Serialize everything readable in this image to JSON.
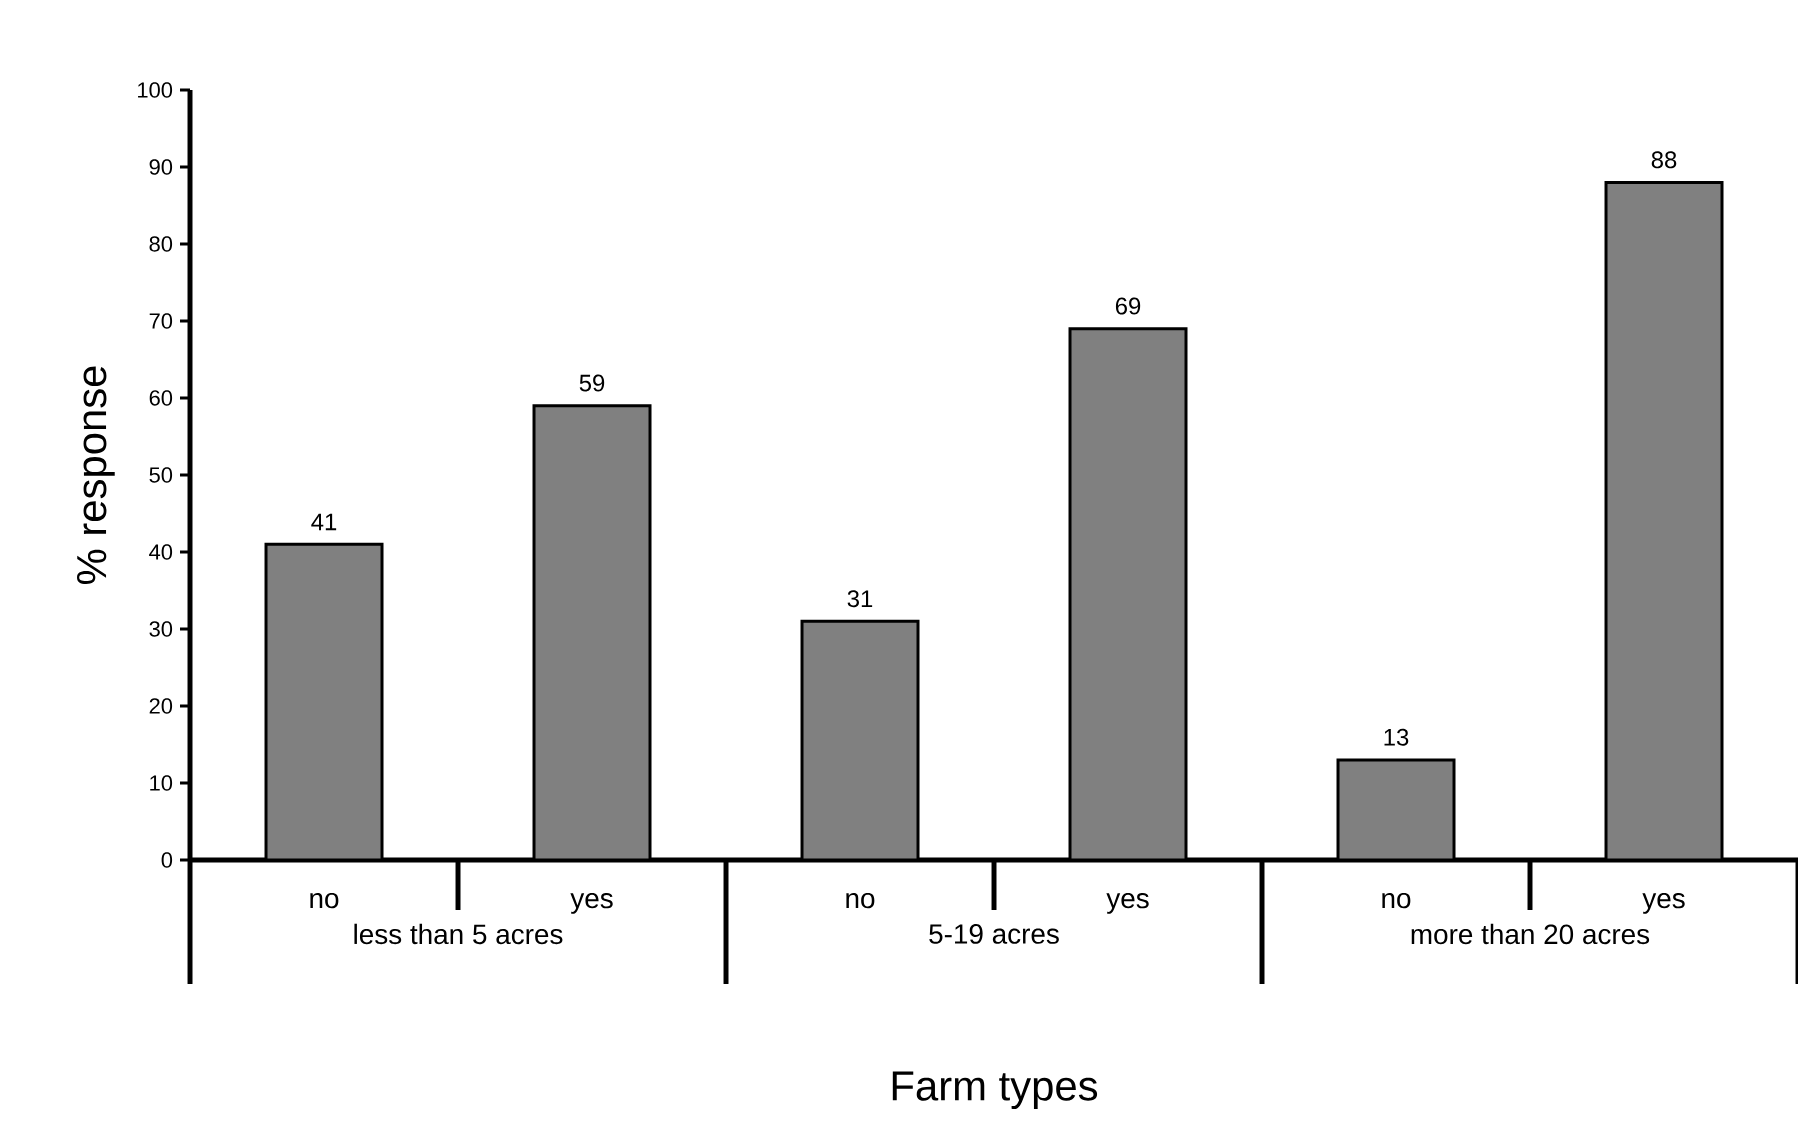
{
  "chart_data": {
    "type": "bar",
    "xlabel": "Farm types",
    "ylabel": "% response",
    "categories": [
      "no",
      "yes",
      "no",
      "yes",
      "no",
      "yes"
    ],
    "values": [
      41,
      59,
      31,
      69,
      13,
      88
    ],
    "color": "#808080",
    "data_labels": true,
    "ylim": [
      0,
      100
    ],
    "yticks": [
      0,
      10,
      20,
      30,
      40,
      50,
      60,
      70,
      80,
      90,
      100
    ],
    "annotations": [
      "less than 5 acres",
      "5-19 acres",
      "more than 20 acres"
    ]
  }
}
